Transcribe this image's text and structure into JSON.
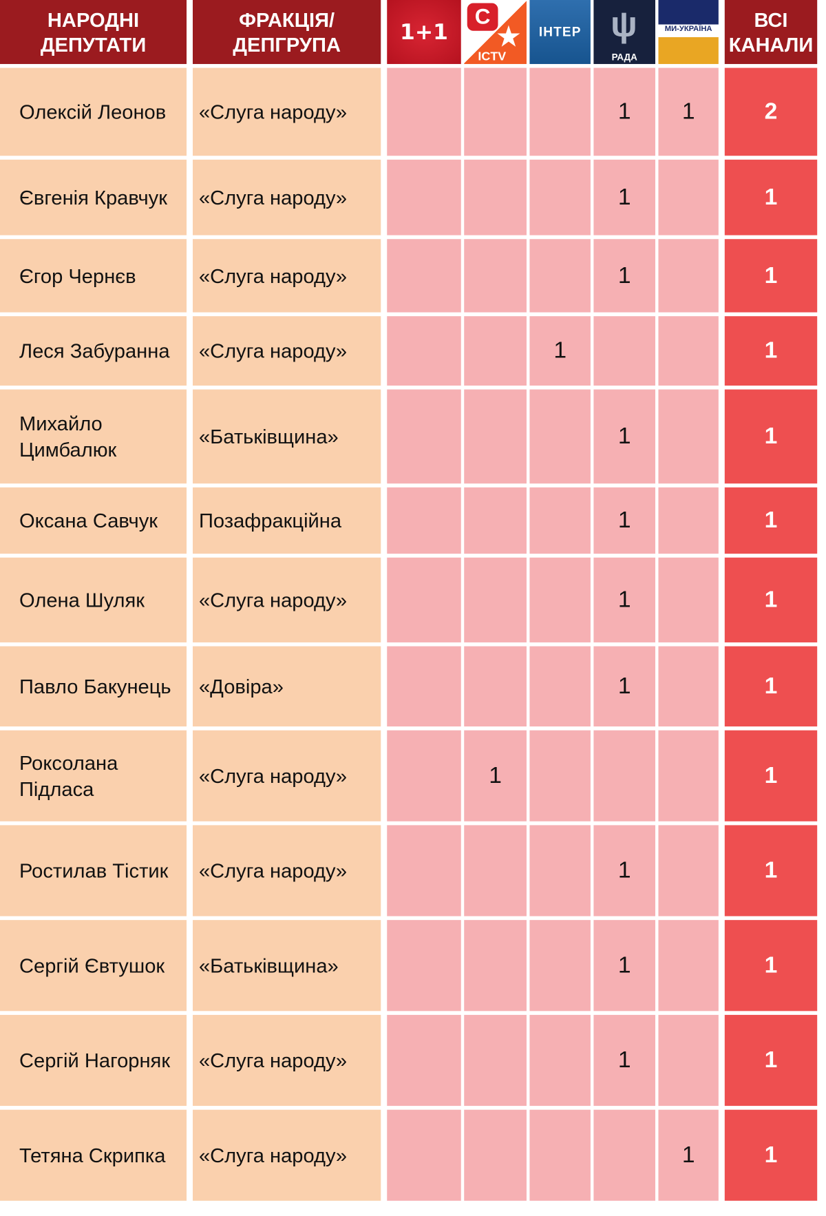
{
  "header": {
    "deputies": "НАРОДНІ ДЕПУТАТИ",
    "faction": "ФРАКЦІЯ/ ДЕПГРУПА",
    "channels": [
      {
        "name": "1+1",
        "icon": "1plus1-logo",
        "color": "#c8192a"
      },
      {
        "name": "ICTV",
        "icon": "ictv-logo",
        "color": "#f25a24"
      },
      {
        "name": "ІНТЕР",
        "icon": "inter-logo",
        "color": "#1e5f9f"
      },
      {
        "name": "РАДА",
        "icon": "rada-logo",
        "color": "#17213d"
      },
      {
        "name": "МИ-УКРАЇНА",
        "icon": "my-ukraina-logo",
        "color": "#e9a623"
      }
    ],
    "total": "ВСІ КАНАЛИ"
  },
  "rows": [
    {
      "name": "Олексій Леонов",
      "faction": "«Слуга народу»",
      "values": [
        "",
        "",
        "",
        "1",
        "1"
      ],
      "total": "2"
    },
    {
      "name": "Євгенія Кравчук",
      "faction": "«Слуга народу»",
      "values": [
        "",
        "",
        "",
        "1",
        ""
      ],
      "total": "1"
    },
    {
      "name": "Єгор Чернєв",
      "faction": "«Слуга народу»",
      "values": [
        "",
        "",
        "",
        "1",
        ""
      ],
      "total": "1"
    },
    {
      "name": "Леся Забуранна",
      "faction": "«Слуга народу»",
      "values": [
        "",
        "",
        "1",
        "",
        ""
      ],
      "total": "1"
    },
    {
      "name": "Михайло Цимбалюк",
      "faction": "«Батьківщина»",
      "values": [
        "",
        "",
        "",
        "1",
        ""
      ],
      "total": "1"
    },
    {
      "name": "Оксана Савчук",
      "faction": "Позафракційна",
      "values": [
        "",
        "",
        "",
        "1",
        ""
      ],
      "total": "1"
    },
    {
      "name": "Олена Шуляк",
      "faction": "«Слуга народу»",
      "values": [
        "",
        "",
        "",
        "1",
        ""
      ],
      "total": "1"
    },
    {
      "name": "Павло Бакунець",
      "faction": "«Довіра»",
      "values": [
        "",
        "",
        "",
        "1",
        ""
      ],
      "total": "1"
    },
    {
      "name": "Роксолана Підласа",
      "faction": "«Слуга народу»",
      "values": [
        "",
        "1",
        "",
        "",
        ""
      ],
      "total": "1"
    },
    {
      "name": "Ростилав Тістик",
      "faction": "«Слуга народу»",
      "values": [
        "",
        "",
        "",
        "1",
        ""
      ],
      "total": "1"
    },
    {
      "name": "Сергій Євтушок",
      "faction": "«Батьківщина»",
      "values": [
        "",
        "",
        "",
        "1",
        ""
      ],
      "total": "1"
    },
    {
      "name": "Сергій Нагорняк",
      "faction": "«Слуга народу»",
      "values": [
        "",
        "",
        "",
        "1",
        ""
      ],
      "total": "1"
    },
    {
      "name": "Тетяна Скрипка",
      "faction": "«Слуга народу»",
      "values": [
        "",
        "",
        "",
        "",
        "1"
      ],
      "total": "1"
    }
  ]
}
